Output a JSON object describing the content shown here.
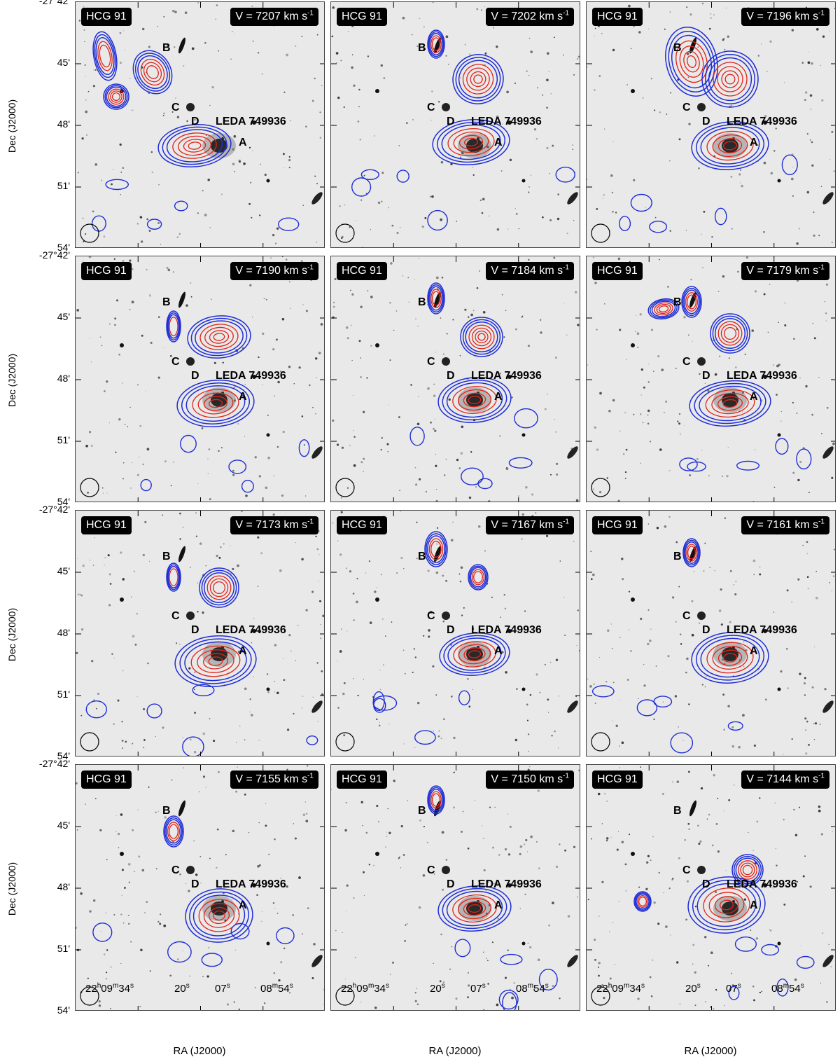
{
  "figure": {
    "group_label": "HCG 91",
    "velocity_unit": "km s",
    "velocity_unit_exp": "-1",
    "velocities": [
      "7207",
      "7202",
      "7196",
      "7190",
      "7184",
      "7179",
      "7173",
      "7167",
      "7161",
      "7155",
      "7150",
      "7144"
    ],
    "galaxy_labels": {
      "a": "A",
      "b": "B",
      "c": "C",
      "d": "D",
      "leda": "LEDA 749936"
    },
    "dec_ticks": [
      "-27°42'",
      "45'",
      "48'",
      "51'",
      "54'"
    ],
    "dec_axis_title": "Dec (J2000)",
    "ra_ticks": {
      "t1_main": "22",
      "t1_h": "h",
      "t1_m_val": "09",
      "t1_m": "m",
      "t1_s_val": "34",
      "t1_s": "s",
      "t2_val": "20",
      "t2_s": "s",
      "t3_val": "07",
      "t3_s": "s",
      "t4_m_val": "08",
      "t4_m": "m",
      "t4_s_val": "54",
      "t4_s": "s"
    },
    "ra_axis_title": "RA (J2000)",
    "colors": {
      "outer_contour": "#1f2ed6",
      "inner_contour": "#e0241b",
      "badge_bg": "#000000",
      "background": "#e9e9e9"
    }
  }
}
